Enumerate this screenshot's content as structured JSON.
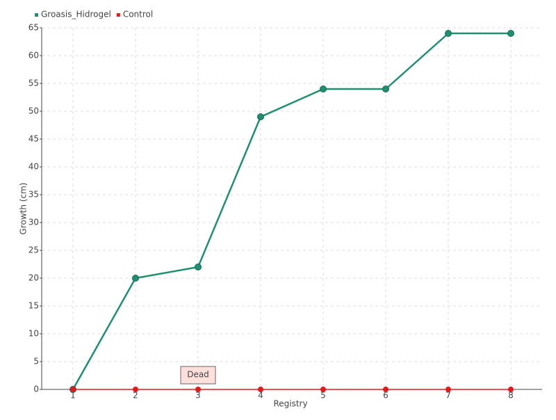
{
  "chart_data": {
    "type": "line",
    "x_label": "Registry",
    "y_label": "Growth (cm)",
    "categories": [
      "1",
      "2",
      "3",
      "4",
      "5",
      "6",
      "7",
      "8"
    ],
    "series": [
      {
        "name": "Groasis_Hidrogel",
        "color": "#1f8f70",
        "values": [
          0,
          20,
          22,
          49,
          54,
          54,
          64,
          64
        ]
      },
      {
        "name": "Control",
        "color": "#e3191c",
        "values": [
          0,
          0,
          0,
          0,
          0,
          0,
          0,
          0
        ]
      }
    ],
    "annotation": "Dead",
    "ylim": [
      0,
      65
    ],
    "yticks": [
      0,
      5,
      10,
      15,
      20,
      25,
      30,
      35,
      40,
      45,
      50,
      55,
      60,
      65
    ],
    "grid": true,
    "legend": "top-left"
  }
}
